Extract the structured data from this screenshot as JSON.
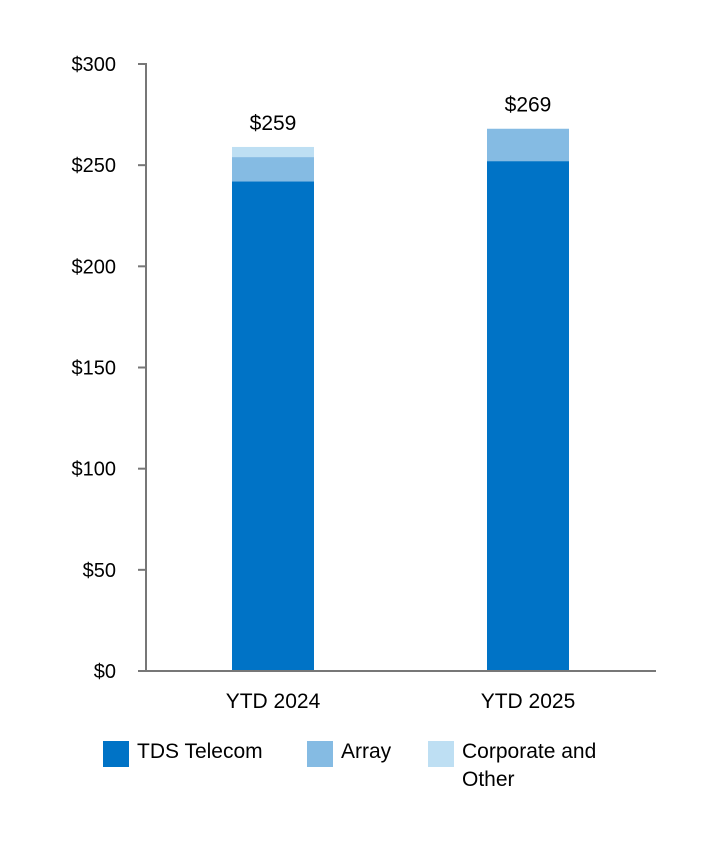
{
  "chart_data": {
    "type": "bar",
    "stacked": true,
    "categories": [
      "YTD 2024",
      "YTD 2025"
    ],
    "series": [
      {
        "name": "TDS Telecom",
        "values": [
          242,
          252
        ],
        "color": "#0073c6"
      },
      {
        "name": "Array",
        "values": [
          12,
          16
        ],
        "color": "#85bbe3"
      },
      {
        "name": "Corporate and Other",
        "values": [
          5,
          0
        ],
        "color": "#bedff3"
      }
    ],
    "totals": [
      "$259",
      "$269"
    ],
    "yticks": [
      0,
      50,
      100,
      150,
      200,
      250,
      300
    ],
    "ytick_labels": [
      "$0",
      "$50",
      "$100",
      "$150",
      "$200",
      "$250",
      "$300"
    ],
    "ylim": [
      0,
      300
    ],
    "title": "",
    "xlabel": "",
    "ylabel": "",
    "legend_position": "bottom"
  }
}
